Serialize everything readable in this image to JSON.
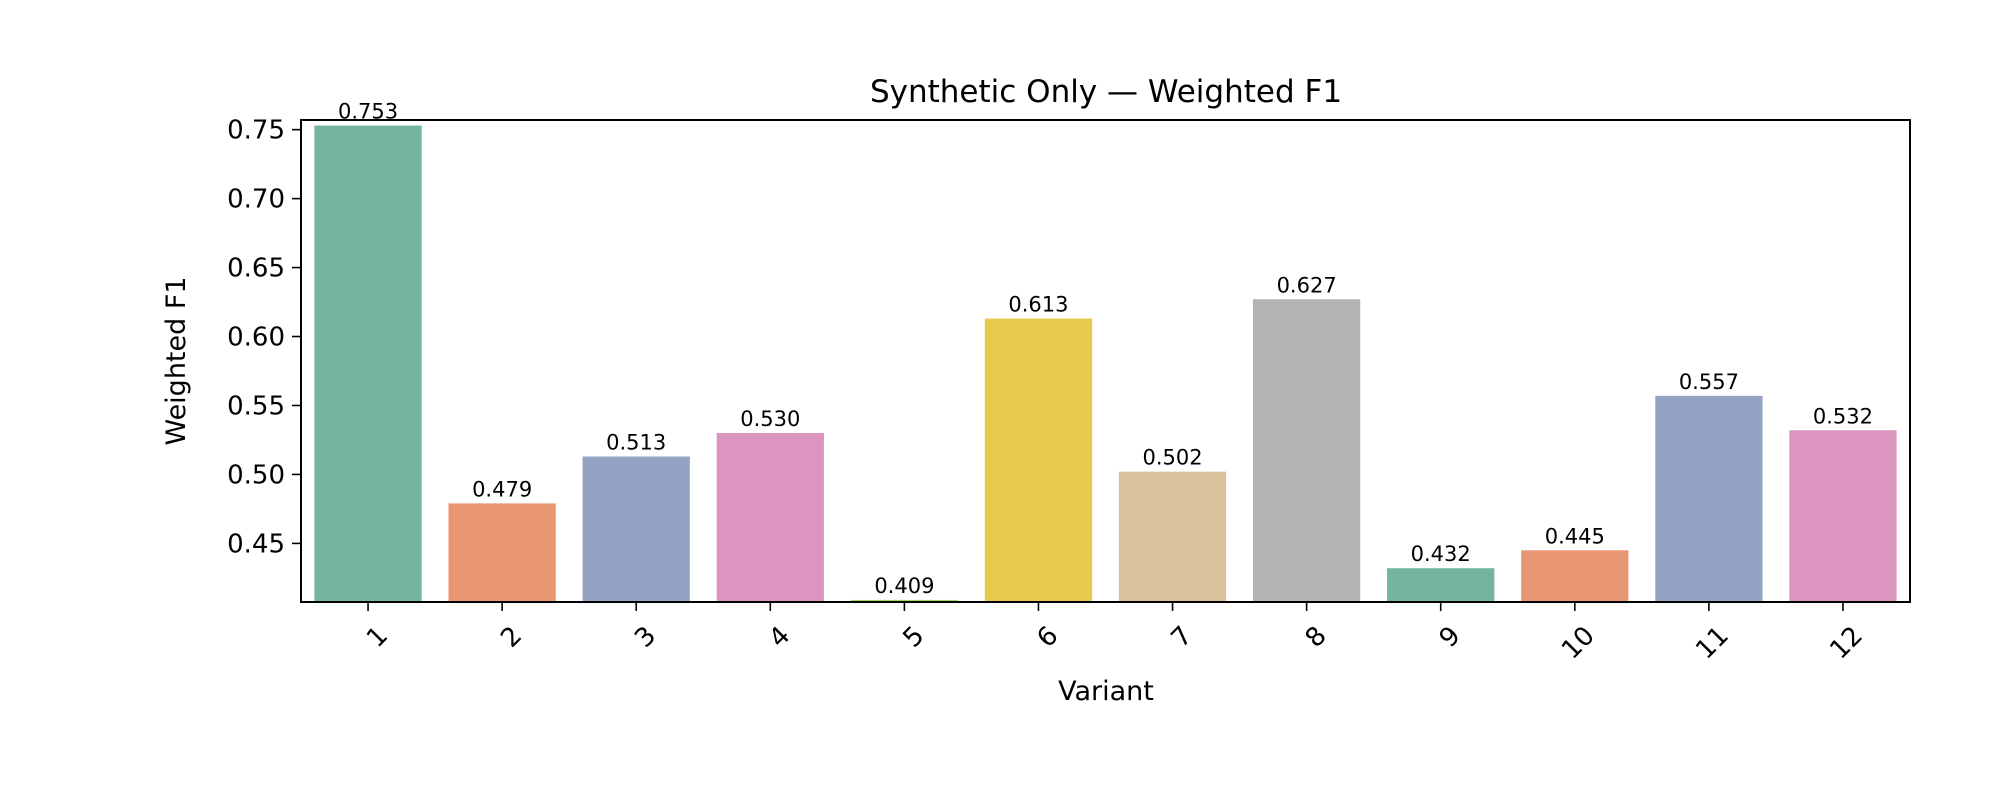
{
  "chart_data": {
    "type": "bar",
    "title": "Synthetic Only — Weighted F1",
    "xlabel": "Variant",
    "ylabel": "Weighted F1",
    "categories": [
      "1",
      "2",
      "3",
      "4",
      "5",
      "6",
      "7",
      "8",
      "9",
      "10",
      "11",
      "12"
    ],
    "values": [
      0.753,
      0.479,
      0.513,
      0.53,
      0.409,
      0.613,
      0.502,
      0.627,
      0.432,
      0.445,
      0.557,
      0.532
    ],
    "value_labels": [
      "0.753",
      "0.479",
      "0.513",
      "0.530",
      "0.409",
      "0.613",
      "0.502",
      "0.627",
      "0.432",
      "0.445",
      "0.557",
      "0.532"
    ],
    "colors": [
      "#73b59f",
      "#e99673",
      "#94a3c3",
      "#db95bf",
      "#a6d854",
      "#e6ca4b",
      "#dbc19b",
      "#b3b3b3",
      "#73b59f",
      "#e99673",
      "#94a3c3",
      "#db95bf"
    ],
    "ylim": [
      0.4075,
      0.757
    ],
    "yticks": [
      0.45,
      0.5,
      0.55,
      0.6,
      0.65,
      0.7,
      0.75
    ],
    "ytick_labels": [
      "0.45",
      "0.50",
      "0.55",
      "0.60",
      "0.65",
      "0.70",
      "0.75"
    ],
    "grid": false,
    "legend": "none"
  }
}
